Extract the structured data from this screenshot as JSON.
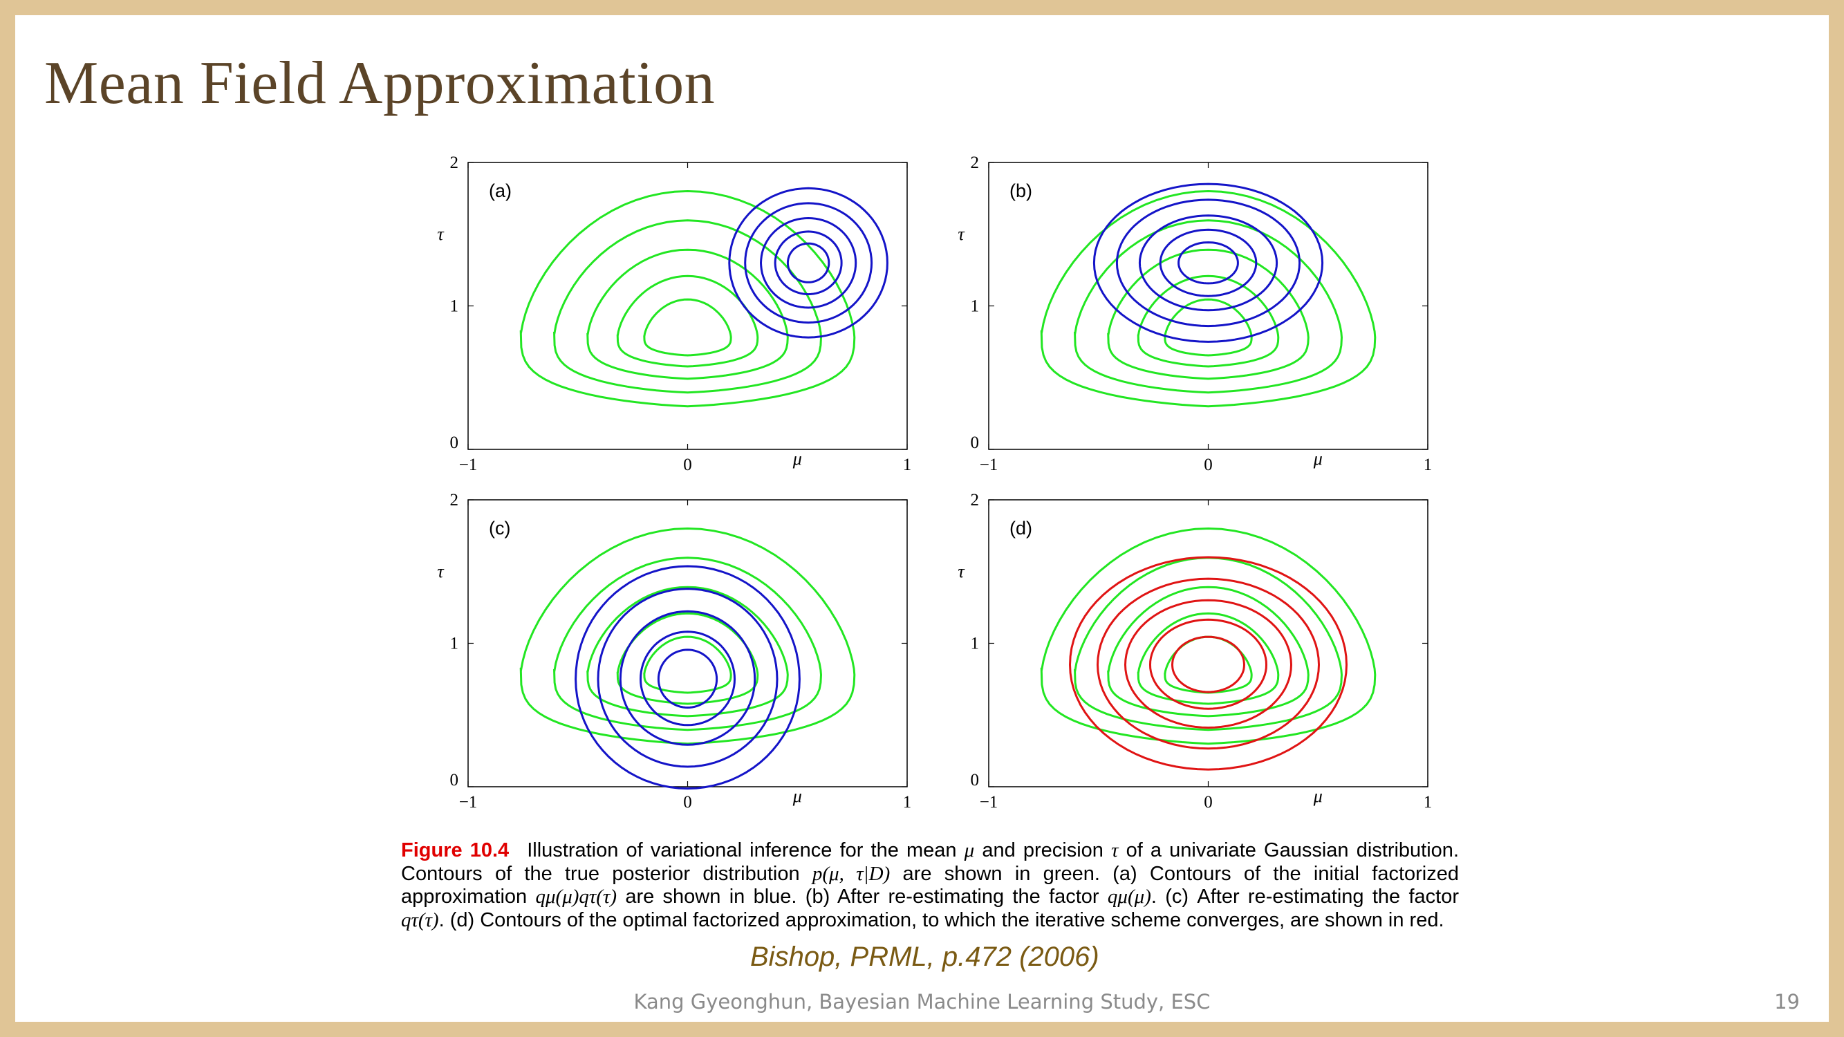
{
  "slide": {
    "title": "Mean Field Approximation",
    "citation": "Bishop, PRML, p.472 (2006)",
    "footer": "Kang Gyeonghun, Bayesian Machine Learning Study, ESC",
    "page_number": "19"
  },
  "caption": {
    "label": "Figure 10.4",
    "p1": "Illustration of variational inference for the mean ",
    "mu": "μ",
    "p2": " and precision ",
    "tau": "τ",
    "p3": " of a univariate Gaussian distribution. Contours of the true posterior distribution ",
    "posterior": "p(μ, τ|D)",
    "p4": " are shown in green. (a) Contours of the initial factorized approximation ",
    "q_init": "qμ(μ)qτ(τ)",
    "p5": " are shown in blue. (b) After re-estimating the factor ",
    "q_mu": "qμ(μ)",
    "p6": ". (c) After re-estimating the factor ",
    "q_tau": "qτ(τ)",
    "p7": ". (d) Contours of the optimal factorized approximation, to which the iterative scheme converges, are shown in red."
  },
  "colors": {
    "true_posterior": "#22e622",
    "approx_initial": "#1414c8",
    "approx_optimal": "#e01414"
  },
  "chart_data": [
    {
      "type": "contour",
      "panel_label": "(a)",
      "xlabel": "μ",
      "ylabel": "τ",
      "xlim": [
        -1,
        1
      ],
      "ylim": [
        0,
        2
      ],
      "xticks": [
        "−1",
        "0",
        "1"
      ],
      "yticks": [
        "0",
        "1",
        "2"
      ],
      "true_posterior_contours": 5,
      "approx_contours": 5,
      "approx_center": [
        0.55,
        1.3
      ],
      "approx_color": "blue"
    },
    {
      "type": "contour",
      "panel_label": "(b)",
      "xlabel": "μ",
      "ylabel": "τ",
      "xlim": [
        -1,
        1
      ],
      "ylim": [
        0,
        2
      ],
      "xticks": [
        "−1",
        "0",
        "1"
      ],
      "yticks": [
        "0",
        "1",
        "2"
      ],
      "true_posterior_contours": 5,
      "approx_contours": 5,
      "approx_center": [
        0.0,
        1.3
      ],
      "approx_color": "blue"
    },
    {
      "type": "contour",
      "panel_label": "(c)",
      "xlabel": "μ",
      "ylabel": "τ",
      "xlim": [
        -1,
        1
      ],
      "ylim": [
        0,
        2
      ],
      "xticks": [
        "−1",
        "0",
        "1"
      ],
      "yticks": [
        "0",
        "1",
        "2"
      ],
      "true_posterior_contours": 5,
      "approx_contours": 5,
      "approx_center": [
        0.0,
        0.75
      ],
      "approx_color": "blue"
    },
    {
      "type": "contour",
      "panel_label": "(d)",
      "xlabel": "μ",
      "ylabel": "τ",
      "xlim": [
        -1,
        1
      ],
      "ylim": [
        0,
        2
      ],
      "xticks": [
        "−1",
        "0",
        "1"
      ],
      "yticks": [
        "0",
        "1",
        "2"
      ],
      "true_posterior_contours": 5,
      "approx_contours": 5,
      "approx_center": [
        0.0,
        0.85
      ],
      "approx_color": "red"
    }
  ]
}
